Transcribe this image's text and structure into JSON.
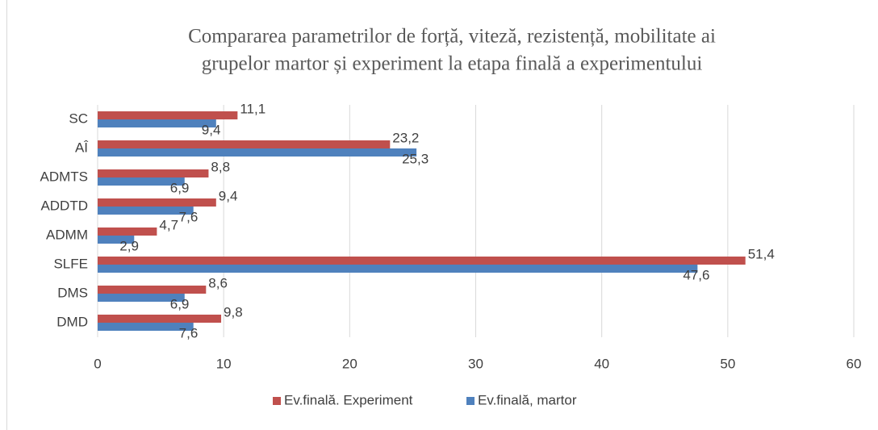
{
  "chart_data": {
    "type": "barh",
    "title": [
      "Compararea parametrilor de forță, viteză, rezistență, mobilitate ai",
      "grupelor martor și experiment la etapa finală a experimentului"
    ],
    "categories": [
      "SC",
      "AÎ",
      "ADMTS",
      "ADDTD",
      "ADMM",
      "SLFE",
      "DMS",
      "DMD"
    ],
    "series": [
      {
        "name": "Ev.finală. Experiment",
        "color": "#c0504d",
        "values": [
          11.1,
          23.2,
          8.8,
          9.4,
          4.7,
          51.4,
          8.6,
          9.8
        ],
        "value_labels": [
          "11,1",
          "23,2",
          "8,8",
          "9,4",
          "4,7",
          "51,4",
          "8,6",
          "9,8"
        ]
      },
      {
        "name": "Ev.finală, martor",
        "color": "#4f81bd",
        "values": [
          9.4,
          25.3,
          6.9,
          7.6,
          2.9,
          47.6,
          6.9,
          7.6
        ],
        "value_labels": [
          "9,4",
          "25,3",
          "6,9",
          "7,6",
          "2,9",
          "47,6",
          "6,9",
          "7,6"
        ]
      }
    ],
    "xlim": [
      0,
      60
    ],
    "xticks": [
      0,
      10,
      20,
      30,
      40,
      50,
      60
    ],
    "grid": true,
    "legend": "bottom"
  }
}
